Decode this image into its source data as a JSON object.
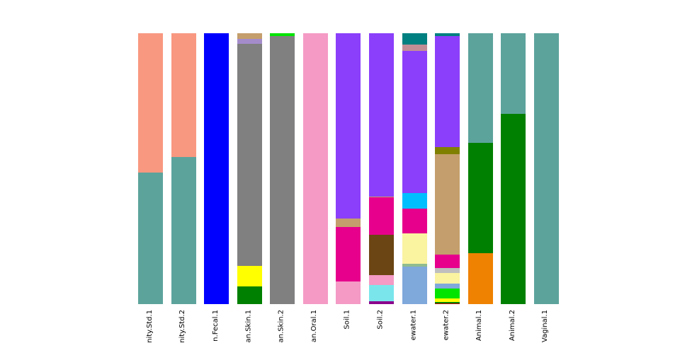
{
  "figure": {
    "background_color": "#ffffff",
    "tick_label_color": "#000000"
  },
  "chart_data": {
    "type": "bar",
    "stacked": true,
    "orientation": "vertical",
    "title": "",
    "xlabel": "",
    "ylabel": "",
    "legend": "none visible",
    "grid": false,
    "axes_lines_visible": false,
    "note": "stacked composition bars, each bar totals 100% of plot height; x tick labels rotated 90deg and clipped at bottom image edge",
    "x_tick_labels_visible": [
      "nity.Std.1",
      "nity.Std.2",
      "n.Fecal.1",
      "an.Skin.1",
      "an.Skin.2",
      "an.Oral.1",
      "Soil.1",
      "Soil.2",
      "ewater.1",
      "ewater.2",
      "Animal.1",
      "Animal.2",
      "Vaginal.1"
    ],
    "palette": {
      "salmon": "#F89880",
      "cadet_teal": "#5CA39C",
      "blue": "#0000FF",
      "tan": "#C49E6C",
      "medium_purple": "#A48CCB",
      "gray": "#808080",
      "yellow": "#FFFF00",
      "green": "#008000",
      "bright_green": "#00E400",
      "pink": "#F49AC5",
      "violet": "#8B3FFA",
      "teal": "#008080",
      "rosy_brown": "#C18E96",
      "deep_sky_blue": "#00BFFF",
      "magenta": "#E6008C",
      "pale_yellow": "#FAF3A0",
      "dark_sea_green": "#8FBC8F",
      "cornflower": "#7FA8DB",
      "dark_brown": "#6B4513",
      "turquoise": "#7AE6EC",
      "dark_magenta": "#8B008B",
      "olive": "#808000",
      "light_gray": "#BFBFBF",
      "dark_red": "#C00000",
      "orange": "#EF8200"
    },
    "bars": [
      {
        "label": "nity.Std.1",
        "segments": [
          {
            "color": "salmon",
            "pct": 51.4
          },
          {
            "color": "cadet_teal",
            "pct": 48.6
          }
        ]
      },
      {
        "label": "nity.Std.2",
        "segments": [
          {
            "color": "salmon",
            "pct": 45.6
          },
          {
            "color": "cadet_teal",
            "pct": 54.4
          }
        ]
      },
      {
        "label": "n.Fecal.1",
        "segments": [
          {
            "color": "blue",
            "pct": 100
          }
        ]
      },
      {
        "label": "an.Skin.1",
        "segments": [
          {
            "color": "tan",
            "pct": 2.2
          },
          {
            "color": "medium_purple",
            "pct": 1.8
          },
          {
            "color": "gray",
            "pct": 81.8
          },
          {
            "color": "yellow",
            "pct": 7.7
          },
          {
            "color": "green",
            "pct": 6.5
          }
        ]
      },
      {
        "label": "an.Skin.2",
        "segments": [
          {
            "color": "bright_green",
            "pct": 1.0
          },
          {
            "color": "gray",
            "pct": 99.0
          }
        ]
      },
      {
        "label": "an.Oral.1",
        "segments": [
          {
            "color": "pink",
            "pct": 100
          }
        ]
      },
      {
        "label": "Soil.1",
        "segments": [
          {
            "color": "violet",
            "pct": 68.4
          },
          {
            "color": "tan",
            "pct": 3.1
          },
          {
            "color": "magenta",
            "pct": 20.1
          },
          {
            "color": "pink",
            "pct": 8.4
          }
        ]
      },
      {
        "label": "Soil.2",
        "segments": [
          {
            "color": "violet",
            "pct": 60.2
          },
          {
            "color": "tan",
            "pct": 0.5
          },
          {
            "color": "magenta",
            "pct": 13.8
          },
          {
            "color": "dark_brown",
            "pct": 14.9
          },
          {
            "color": "pink",
            "pct": 3.5
          },
          {
            "color": "turquoise",
            "pct": 6.0
          },
          {
            "color": "dark_magenta",
            "pct": 1.1
          }
        ]
      },
      {
        "label": "ewater.1",
        "segments": [
          {
            "color": "teal",
            "pct": 4.2
          },
          {
            "color": "rosy_brown",
            "pct": 2.4
          },
          {
            "color": "violet",
            "pct": 52.5
          },
          {
            "color": "deep_sky_blue",
            "pct": 5.6
          },
          {
            "color": "magenta",
            "pct": 9.1
          },
          {
            "color": "pale_yellow",
            "pct": 11.2
          },
          {
            "color": "dark_sea_green",
            "pct": 1.1
          },
          {
            "color": "cornflower",
            "pct": 13.9
          }
        ]
      },
      {
        "label": "ewater.2",
        "segments": [
          {
            "color": "teal",
            "pct": 1.1
          },
          {
            "color": "violet",
            "pct": 40.9
          },
          {
            "color": "olive",
            "pct": 2.6
          },
          {
            "color": "tan",
            "pct": 37.0
          },
          {
            "color": "magenta",
            "pct": 5.2
          },
          {
            "color": "light_gray",
            "pct": 1.7
          },
          {
            "color": "pale_yellow",
            "pct": 3.9
          },
          {
            "color": "cornflower",
            "pct": 1.9
          },
          {
            "color": "bright_green",
            "pct": 3.7
          },
          {
            "color": "yellow",
            "pct": 1.2
          },
          {
            "color": "green",
            "pct": 0.5
          },
          {
            "color": "dark_red",
            "pct": 0.3
          }
        ]
      },
      {
        "label": "Animal.1",
        "segments": [
          {
            "color": "cadet_teal",
            "pct": 40.4
          },
          {
            "color": "green",
            "pct": 40.8
          },
          {
            "color": "orange",
            "pct": 18.8
          }
        ]
      },
      {
        "label": "Animal.2",
        "segments": [
          {
            "color": "cadet_teal",
            "pct": 29.7
          },
          {
            "color": "green",
            "pct": 70.3
          }
        ]
      },
      {
        "label": "Vaginal.1",
        "segments": [
          {
            "color": "cadet_teal",
            "pct": 100
          }
        ]
      }
    ]
  }
}
